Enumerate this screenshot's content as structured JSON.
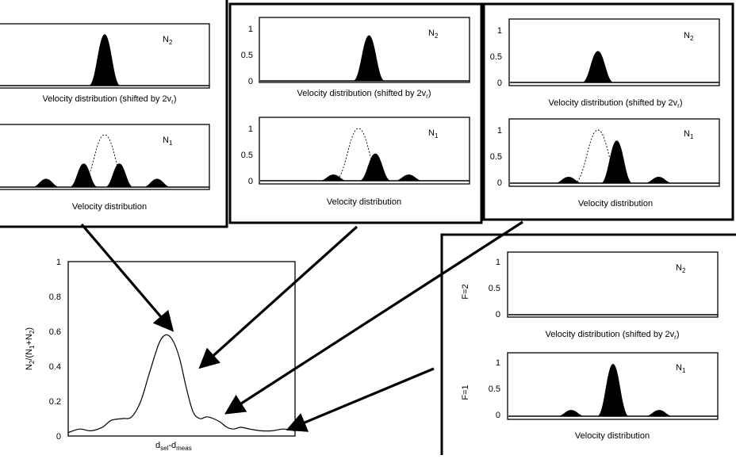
{
  "colors": {
    "ink": "#000000",
    "background": "#ffffff"
  },
  "chart_data": [
    {
      "id": "main",
      "type": "line",
      "ylabel": "N2/(N1+N2)",
      "xlabel": "dsel-dmeas",
      "ylim": [
        0,
        1
      ],
      "yticks": [
        "0",
        "0.2",
        "0.4",
        "0.6",
        "0.8",
        "1"
      ],
      "series": [
        {
          "x": [
            0,
            0.05,
            0.1,
            0.15,
            0.19,
            0.24,
            0.28,
            0.32,
            0.36,
            0.4,
            0.43,
            0.46,
            0.49,
            0.52,
            0.55,
            0.58,
            0.61,
            0.64,
            0.67,
            0.7,
            0.73,
            0.76,
            0.8,
            0.85,
            0.9,
            0.95,
            1.0
          ],
          "y": [
            0.02,
            0.04,
            0.03,
            0.05,
            0.09,
            0.1,
            0.11,
            0.2,
            0.37,
            0.53,
            0.58,
            0.55,
            0.45,
            0.28,
            0.14,
            0.1,
            0.11,
            0.1,
            0.08,
            0.05,
            0.04,
            0.05,
            0.04,
            0.03,
            0.03,
            0.04,
            0.03
          ]
        }
      ]
    },
    {
      "id": "p1-top",
      "type": "area",
      "label": "N2",
      "xlabel": "Velocity distribution (shifted by 2vr)",
      "peaks": [
        {
          "x": 0.5,
          "h": 0.9
        }
      ]
    },
    {
      "id": "p1-bottom",
      "type": "area",
      "label": "N1",
      "xlabel": "Velocity distribution",
      "dashed_peak": {
        "x": 0.5,
        "h": 1.0
      },
      "peaks": [
        {
          "x": 0.4,
          "h": 0.45
        },
        {
          "x": 0.57,
          "h": 0.45
        },
        {
          "x": 0.22,
          "h": 0.16
        },
        {
          "x": 0.75,
          "h": 0.16
        }
      ]
    },
    {
      "id": "p2-top",
      "type": "area",
      "label": "N2",
      "xlabel": "Velocity distribution (shifted by 2vr)",
      "yticks": [
        "0",
        "0.5",
        "1"
      ],
      "peaks": [
        {
          "x": 0.52,
          "h": 0.87
        }
      ]
    },
    {
      "id": "p2-bottom",
      "type": "area",
      "label": "N1",
      "xlabel": "Velocity distribution",
      "yticks": [
        "0",
        "0.5",
        "1"
      ],
      "dashed_peak": {
        "x": 0.47,
        "h": 1.0
      },
      "peaks": [
        {
          "x": 0.55,
          "h": 0.52
        },
        {
          "x": 0.35,
          "h": 0.12
        },
        {
          "x": 0.71,
          "h": 0.12
        }
      ]
    },
    {
      "id": "p3-top",
      "type": "area",
      "label": "N2",
      "xlabel": "Velocity distribution (shifted by 2vr)",
      "yticks": [
        "0",
        "0.5",
        "1"
      ],
      "peaks": [
        {
          "x": 0.42,
          "h": 0.6
        }
      ]
    },
    {
      "id": "p3-bottom",
      "type": "area",
      "label": "N1",
      "xlabel": "Velocity distribution",
      "yticks": [
        "0",
        "0.5",
        "1"
      ],
      "dashed_peak": {
        "x": 0.42,
        "h": 1.0
      },
      "peaks": [
        {
          "x": 0.51,
          "h": 0.8
        },
        {
          "x": 0.28,
          "h": 0.12
        },
        {
          "x": 0.71,
          "h": 0.12
        }
      ]
    },
    {
      "id": "p4-top",
      "type": "area",
      "label": "N2",
      "xlabel": "Velocity distribution (shifted by 2vr)",
      "ylabel": "F=2",
      "yticks": [
        "0",
        "0.5",
        "1"
      ],
      "peaks": []
    },
    {
      "id": "p4-bottom",
      "type": "area",
      "label": "N1",
      "xlabel": "Velocity distribution",
      "ylabel": "F=1",
      "yticks": [
        "0",
        "0.5",
        "1"
      ],
      "peaks": [
        {
          "x": 0.5,
          "h": 1.0
        },
        {
          "x": 0.3,
          "h": 0.12
        },
        {
          "x": 0.72,
          "h": 0.12
        }
      ]
    }
  ]
}
